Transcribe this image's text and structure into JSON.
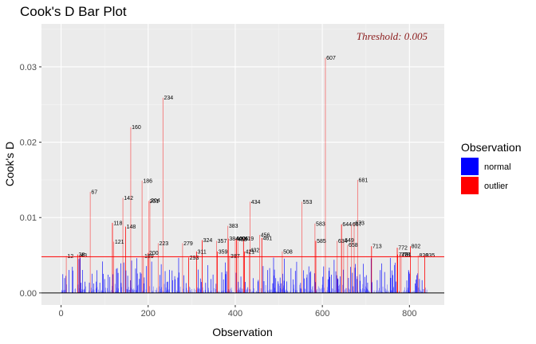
{
  "chart_data": {
    "type": "bar",
    "title": "Cook's D Bar Plot",
    "xlabel": "Observation",
    "ylabel": "Cook's D",
    "xlim": [
      -45,
      880
    ],
    "ylim": [
      -0.0016,
      0.0357
    ],
    "x_ticks": [
      0,
      200,
      400,
      600,
      800
    ],
    "x_tick_labels": [
      "0",
      "200",
      "400",
      "600",
      "800"
    ],
    "y_ticks": [
      0.0,
      0.01,
      0.02,
      0.03
    ],
    "y_tick_labels": [
      "0.00",
      "0.01",
      "0.02",
      "0.03"
    ],
    "threshold": 0.0048,
    "threshold_label": "Threshold: 0.005",
    "legend": {
      "title": "Observation",
      "position": "right",
      "entries": [
        {
          "label": "normal",
          "color": "#0000ff"
        },
        {
          "label": "outlier",
          "color": "#ff0000"
        }
      ]
    },
    "n_observations": 840,
    "normal_max_value": 0.0047,
    "outliers": [
      {
        "obs": 12,
        "value": 0.0049,
        "label": "12"
      },
      {
        "obs": 38,
        "value": 0.0051,
        "label": "38"
      },
      {
        "obs": 43,
        "value": 0.005,
        "label": "43"
      },
      {
        "obs": 67,
        "value": 0.0134,
        "label": "67"
      },
      {
        "obs": 118,
        "value": 0.0093,
        "label": "118"
      },
      {
        "obs": 121,
        "value": 0.0068,
        "label": "121"
      },
      {
        "obs": 142,
        "value": 0.0126,
        "label": "142"
      },
      {
        "obs": 148,
        "value": 0.0088,
        "label": "148"
      },
      {
        "obs": 160,
        "value": 0.022,
        "label": "160"
      },
      {
        "obs": 186,
        "value": 0.0149,
        "label": "186"
      },
      {
        "obs": 189,
        "value": 0.0049,
        "label": "189"
      },
      {
        "obs": 200,
        "value": 0.0053,
        "label": "200"
      },
      {
        "obs": 201,
        "value": 0.0122,
        "label": "201"
      },
      {
        "obs": 204,
        "value": 0.0123,
        "label": "204"
      },
      {
        "obs": 223,
        "value": 0.0066,
        "label": "223"
      },
      {
        "obs": 234,
        "value": 0.0259,
        "label": "234"
      },
      {
        "obs": 279,
        "value": 0.0066,
        "label": "279"
      },
      {
        "obs": 293,
        "value": 0.0047,
        "label": "293"
      },
      {
        "obs": 311,
        "value": 0.0055,
        "label": "311"
      },
      {
        "obs": 324,
        "value": 0.007,
        "label": "324"
      },
      {
        "obs": 357,
        "value": 0.0069,
        "label": "357"
      },
      {
        "obs": 359,
        "value": 0.0055,
        "label": "359"
      },
      {
        "obs": 383,
        "value": 0.0089,
        "label": "383"
      },
      {
        "obs": 384,
        "value": 0.0072,
        "label": "384"
      },
      {
        "obs": 387,
        "value": 0.0049,
        "label": "387"
      },
      {
        "obs": 400,
        "value": 0.0072,
        "label": "400"
      },
      {
        "obs": 403,
        "value": 0.0071,
        "label": "403"
      },
      {
        "obs": 406,
        "value": 0.0072,
        "label": "406"
      },
      {
        "obs": 419,
        "value": 0.0072,
        "label": "419"
      },
      {
        "obs": 421,
        "value": 0.0055,
        "label": "421"
      },
      {
        "obs": 432,
        "value": 0.0057,
        "label": "432"
      },
      {
        "obs": 434,
        "value": 0.0121,
        "label": "434"
      },
      {
        "obs": 456,
        "value": 0.0077,
        "label": "456"
      },
      {
        "obs": 461,
        "value": 0.0073,
        "label": "461"
      },
      {
        "obs": 508,
        "value": 0.0055,
        "label": "508"
      },
      {
        "obs": 553,
        "value": 0.0121,
        "label": "553"
      },
      {
        "obs": 583,
        "value": 0.0092,
        "label": "583"
      },
      {
        "obs": 585,
        "value": 0.0069,
        "label": "585"
      },
      {
        "obs": 607,
        "value": 0.0312,
        "label": "607"
      },
      {
        "obs": 634,
        "value": 0.0069,
        "label": "634"
      },
      {
        "obs": 644,
        "value": 0.0091,
        "label": "644"
      },
      {
        "obs": 649,
        "value": 0.007,
        "label": "649"
      },
      {
        "obs": 658,
        "value": 0.0064,
        "label": "658"
      },
      {
        "obs": 667,
        "value": 0.0091,
        "label": "667"
      },
      {
        "obs": 673,
        "value": 0.0093,
        "label": "673"
      },
      {
        "obs": 681,
        "value": 0.015,
        "label": "681"
      },
      {
        "obs": 713,
        "value": 0.0062,
        "label": "713"
      },
      {
        "obs": 772,
        "value": 0.006,
        "label": "772"
      },
      {
        "obs": 773,
        "value": 0.0051,
        "label": "773"
      },
      {
        "obs": 778,
        "value": 0.0051,
        "label": "778"
      },
      {
        "obs": 781,
        "value": 0.0051,
        "label": "781"
      },
      {
        "obs": 802,
        "value": 0.0062,
        "label": "802"
      },
      {
        "obs": 820,
        "value": 0.005,
        "label": "820"
      },
      {
        "obs": 835,
        "value": 0.005,
        "label": "835"
      }
    ]
  }
}
